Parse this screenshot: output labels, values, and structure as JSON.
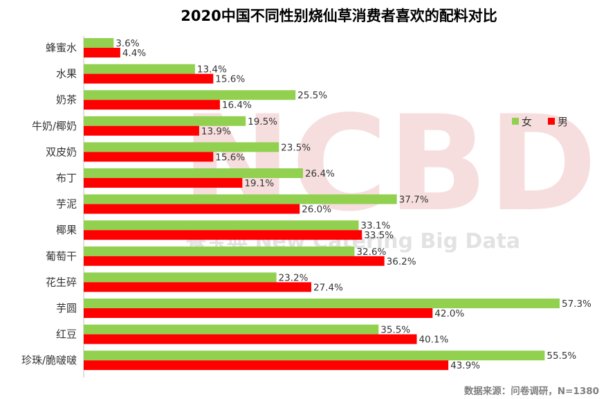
{
  "chart_data": {
    "type": "bar",
    "orientation": "horizontal",
    "title": "2020中国不同性别烧仙草消费者喜欢的配料对比",
    "categories": [
      "蜂蜜水",
      "水果",
      "奶茶",
      "牛奶/椰奶",
      "双皮奶",
      "布丁",
      "芋泥",
      "椰果",
      "葡萄干",
      "花生碎",
      "芋圆",
      "红豆",
      "珍珠/脆啵啵"
    ],
    "series": [
      {
        "name": "女",
        "color": "#92d050",
        "values": [
          3.6,
          13.4,
          25.5,
          19.5,
          23.5,
          26.4,
          37.7,
          33.1,
          32.6,
          23.2,
          57.3,
          35.5,
          55.5
        ],
        "labels": [
          "3.6%",
          "13.4%",
          "25.5%",
          "19.5%",
          "23.5%",
          "26.4%",
          "37.7%",
          "33.1%",
          "32.6%",
          "23.2%",
          "57.3%",
          "35.5%",
          "55.5%"
        ]
      },
      {
        "name": "男",
        "color": "#ff0000",
        "values": [
          4.4,
          15.6,
          16.4,
          13.9,
          15.6,
          19.1,
          26.0,
          33.5,
          36.2,
          27.4,
          42.0,
          40.1,
          43.9
        ],
        "labels": [
          "4.4%",
          "15.6%",
          "16.4%",
          "13.9%",
          "15.6%",
          "19.1%",
          "26.0%",
          "33.5%",
          "36.2%",
          "27.4%",
          "42.0%",
          "40.1%",
          "43.9%"
        ]
      }
    ],
    "xlim": [
      0,
      60
    ],
    "unit": "%",
    "grid": false,
    "legend_position": "right"
  },
  "watermark": {
    "big": "NCBD",
    "small": "餐宝典 New Catering Big Data"
  },
  "source_text": "数据来源：问卷调研，N=1380"
}
